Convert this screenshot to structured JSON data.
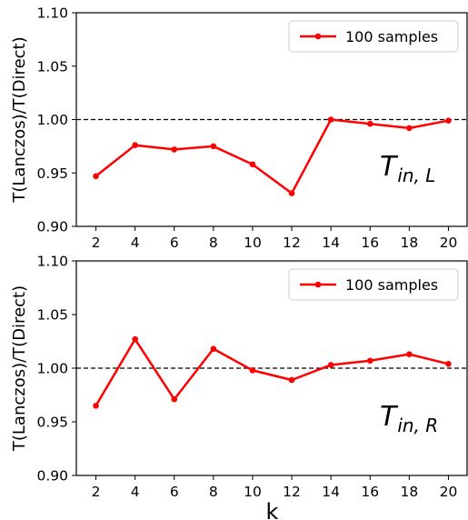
{
  "chart_data": [
    {
      "type": "line",
      "xlabel": "",
      "ylabel": "T(Lanczos)/T(Direct)",
      "ylim": [
        0.9,
        1.1
      ],
      "yticks": [
        "0.90",
        "0.95",
        "1.00",
        "1.05",
        "1.10"
      ],
      "x": [
        2,
        4,
        6,
        8,
        10,
        12,
        14,
        16,
        18,
        20
      ],
      "xticks": [
        "2",
        "4",
        "6",
        "8",
        "10",
        "12",
        "14",
        "16",
        "18",
        "20"
      ],
      "series": [
        {
          "name": "100 samples",
          "color": "#ff0000",
          "values": [
            0.947,
            0.976,
            0.972,
            0.975,
            0.958,
            0.931,
            1.0,
            0.996,
            0.992,
            0.999
          ]
        }
      ],
      "reference_line": 1.0,
      "legend_position": "top-right",
      "annotation": {
        "main": "T",
        "sub": "in, L"
      }
    },
    {
      "type": "line",
      "xlabel": "k",
      "ylabel": "T(Lanczos)/T(Direct)",
      "ylim": [
        0.9,
        1.1
      ],
      "yticks": [
        "0.90",
        "0.95",
        "1.00",
        "1.05",
        "1.10"
      ],
      "x": [
        2,
        4,
        6,
        8,
        10,
        12,
        14,
        16,
        18,
        20
      ],
      "xticks": [
        "2",
        "4",
        "6",
        "8",
        "10",
        "12",
        "14",
        "16",
        "18",
        "20"
      ],
      "series": [
        {
          "name": "100 samples",
          "color": "#ff0000",
          "values": [
            0.965,
            1.027,
            0.971,
            1.018,
            0.998,
            0.989,
            1.003,
            1.007,
            1.013,
            1.004
          ]
        }
      ],
      "reference_line": 1.0,
      "legend_position": "top-right",
      "annotation": {
        "main": "T",
        "sub": "in, R"
      }
    }
  ]
}
